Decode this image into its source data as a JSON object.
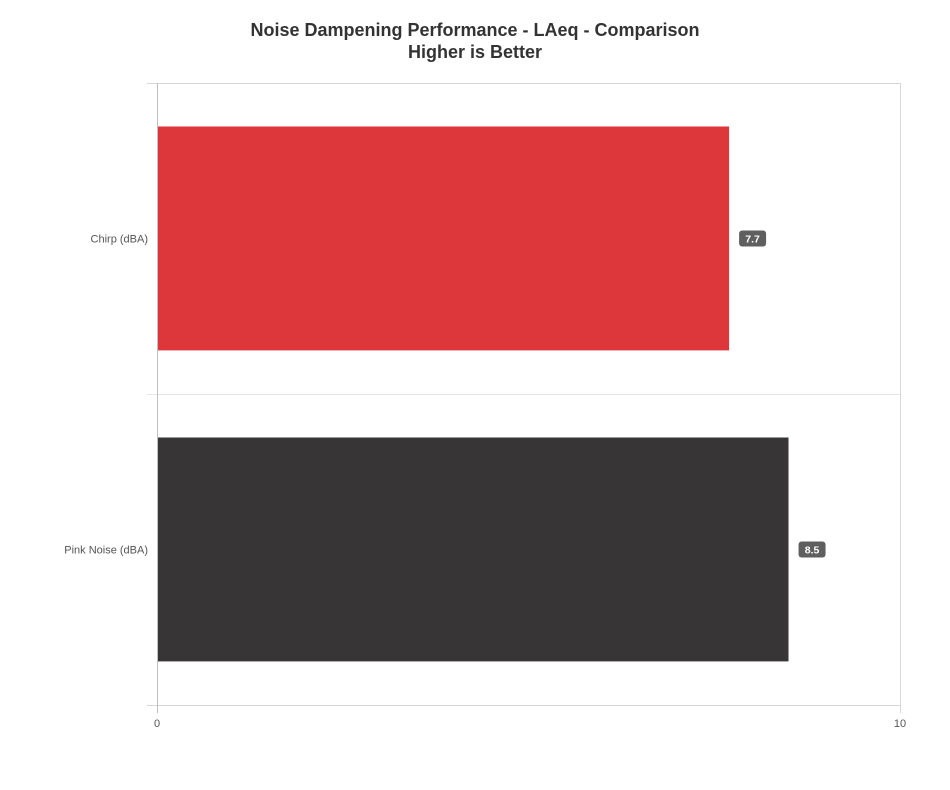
{
  "chart_data": {
    "type": "bar",
    "orientation": "horizontal",
    "title": "Noise Dampening Performance - LAeq - Comparison",
    "subtitle": "Higher is Better",
    "categories": [
      "Chirp (dBA)",
      "Pink Noise (dBA)"
    ],
    "values": [
      7.7,
      8.5
    ],
    "data_labels": [
      "7.7",
      "8.5"
    ],
    "bar_colors": [
      "#dd363b",
      "#373536"
    ],
    "xlim": [
      0,
      10
    ],
    "x_ticks": [
      "0",
      "10"
    ],
    "grid": true,
    "legend": "none"
  }
}
